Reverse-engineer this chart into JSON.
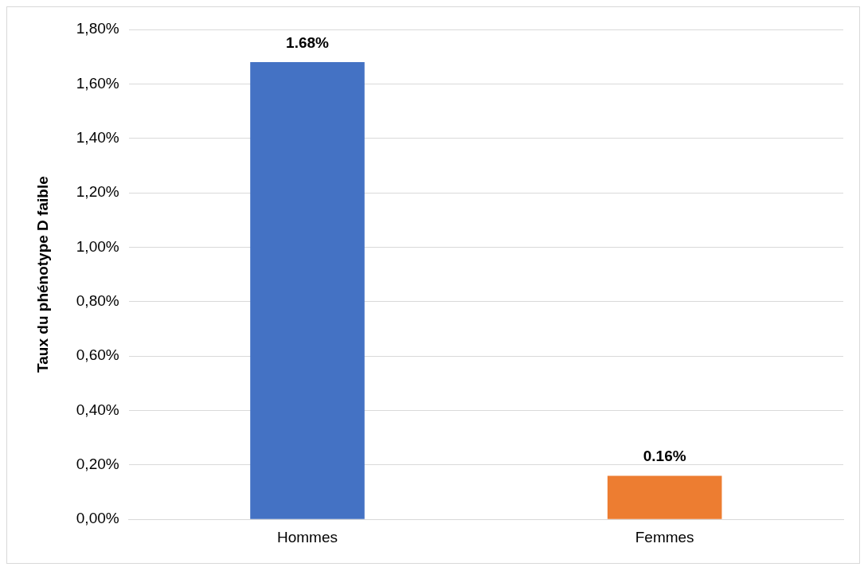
{
  "chart_data": {
    "type": "bar",
    "ylabel": "Taux du phénotype D faible",
    "categories": [
      "Hommes",
      "Femmes"
    ],
    "values": [
      1.68,
      0.16
    ],
    "colors": [
      "#4472c4",
      "#ed7d31"
    ],
    "value_labels": [
      "1.68%",
      "0.16%"
    ],
    "ylim": [
      0,
      1.8
    ],
    "yticks": [
      {
        "value": 0,
        "label": "0,00%"
      },
      {
        "value": 0.2,
        "label": "0,20%"
      },
      {
        "value": 0.4,
        "label": "0,40%"
      },
      {
        "value": 0.6,
        "label": "0,60%"
      },
      {
        "value": 0.8,
        "label": "0,80%"
      },
      {
        "value": 1,
        "label": "1,00%"
      },
      {
        "value": 1.2,
        "label": "1,20%"
      },
      {
        "value": 1.4,
        "label": "1,40%"
      },
      {
        "value": 1.6,
        "label": "1,60%"
      },
      {
        "value": 1.8,
        "label": "1,80%"
      }
    ],
    "grid": "y"
  }
}
